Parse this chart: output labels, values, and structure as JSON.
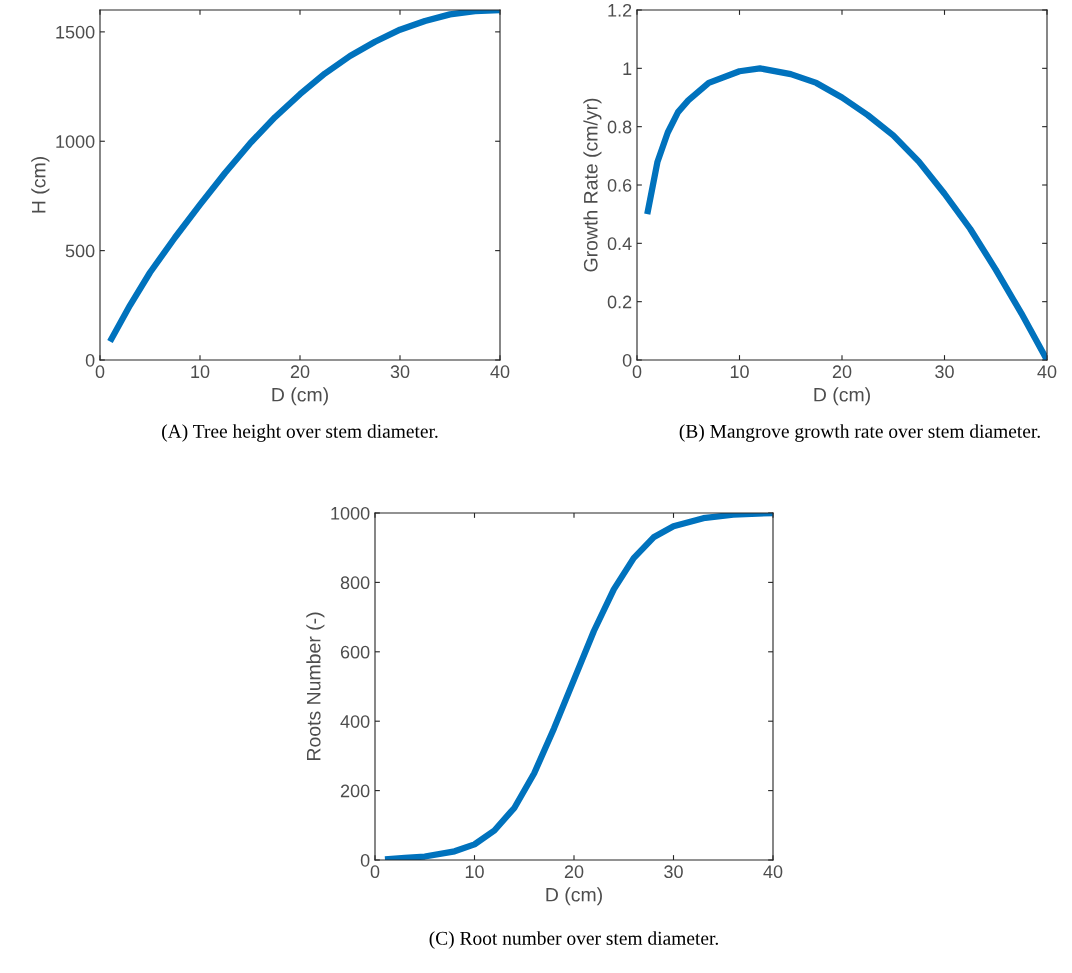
{
  "chart_data": [
    {
      "type": "line",
      "xlabel": "D (cm)",
      "ylabel": "H (cm)",
      "annotations": [
        "(A) Tree height over stem diameter."
      ],
      "xlim": [
        0,
        40
      ],
      "xticks": [
        0,
        10,
        20,
        30,
        40
      ],
      "ylim": [
        0,
        1600
      ],
      "yticks": [
        0,
        500,
        1000,
        1500
      ],
      "series": [
        {
          "color": "#0072bd",
          "x": [
            1,
            3,
            5,
            7.5,
            10,
            12.5,
            15,
            17.5,
            20,
            22.5,
            25,
            27.5,
            30,
            32.5,
            35,
            37.5,
            40
          ],
          "values": [
            85,
            250,
            400,
            560,
            710,
            855,
            990,
            1110,
            1215,
            1310,
            1390,
            1455,
            1510,
            1550,
            1580,
            1595,
            1600
          ]
        }
      ]
    },
    {
      "type": "line",
      "xlabel": "D (cm)",
      "ylabel": "Growth Rate (cm/yr)",
      "annotations": [
        "(B) Mangrove growth rate over stem diameter."
      ],
      "xlim": [
        0,
        40
      ],
      "xticks": [
        0,
        10,
        20,
        30,
        40
      ],
      "ylim": [
        0,
        1.2
      ],
      "yticks": [
        0,
        0.2,
        0.4,
        0.6,
        0.8,
        {
          "value": 1,
          "label": "1"
        },
        1.2
      ],
      "series": [
        {
          "color": "#0072bd",
          "x": [
            1,
            2,
            3,
            4,
            5,
            7,
            10,
            12,
            15,
            17.5,
            20,
            22.5,
            25,
            27.5,
            30,
            32.5,
            35,
            37.5,
            40
          ],
          "values": [
            0.5,
            0.68,
            0.78,
            0.85,
            0.89,
            0.95,
            0.99,
            1.0,
            0.98,
            0.95,
            0.9,
            0.84,
            0.77,
            0.68,
            0.57,
            0.45,
            0.31,
            0.16,
            0.0
          ]
        }
      ]
    },
    {
      "type": "line",
      "xlabel": "D (cm)",
      "ylabel": "Roots Number (-)",
      "annotations": [
        "(C) Root number over stem diameter."
      ],
      "xlim": [
        0,
        40
      ],
      "xticks": [
        0,
        10,
        20,
        30,
        40
      ],
      "ylim": [
        0,
        1000
      ],
      "yticks": [
        0,
        200,
        400,
        600,
        800,
        1000
      ],
      "series": [
        {
          "color": "#0072bd",
          "x": [
            1,
            3,
            5,
            8,
            10,
            12,
            14,
            16,
            18,
            20,
            22,
            24,
            26,
            28,
            30,
            33,
            36,
            40
          ],
          "values": [
            2,
            6,
            10,
            25,
            45,
            85,
            150,
            250,
            380,
            520,
            660,
            780,
            870,
            930,
            962,
            985,
            995,
            1000
          ]
        }
      ]
    }
  ]
}
